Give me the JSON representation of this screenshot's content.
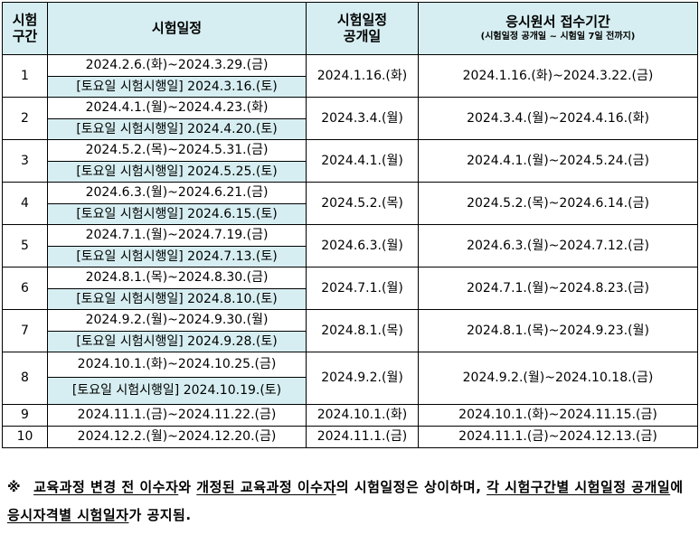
{
  "header": {
    "col1": "시험구간",
    "col1_line1": "시험",
    "col1_line2": "구간",
    "col2": "시험일정",
    "col3_line1": "시험일정",
    "col3_line2": "공개일",
    "col4_main": "응시원서 접수기간",
    "col4_sub": "(시험일정 공개일 ~ 시험일 7일 전까지)"
  },
  "rows": [
    {
      "no": "1",
      "period": "2024.2.6.(화)~2024.3.29.(금)",
      "sat": "[토요일 시험시행일] 2024.3.16.(토)",
      "open": "2024.1.16.(화)",
      "apply": "2024.1.16.(화)~2024.3.22.(금)"
    },
    {
      "no": "2",
      "period": "2024.4.1.(월)~2024.4.23.(화)",
      "sat": "[토요일 시험시행일] 2024.4.20.(토)",
      "open": "2024.3.4.(월)",
      "apply": "2024.3.4.(월)~2024.4.16.(화)"
    },
    {
      "no": "3",
      "period": "2024.5.2.(목)~2024.5.31.(금)",
      "sat": "[토요일 시험시행일] 2024.5.25.(토)",
      "open": "2024.4.1.(월)",
      "apply": "2024.4.1.(월)~2024.5.24.(금)"
    },
    {
      "no": "4",
      "period": "2024.6.3.(월)~2024.6.21.(금)",
      "sat": "[토요일 시험시행일] 2024.6.15.(토)",
      "open": "2024.5.2.(목)",
      "apply": "2024.5.2.(목)~2024.6.14.(금)"
    },
    {
      "no": "5",
      "period": "2024.7.1.(월)~2024.7.19.(금)",
      "sat": "[토요일 시험시행일] 2024.7.13.(토)",
      "open": "2024.6.3.(월)",
      "apply": "2024.6.3.(월)~2024.7.12.(금)"
    },
    {
      "no": "6",
      "period": "2024.8.1.(목)~2024.8.30.(금)",
      "sat": "[토요일 시험시행일] 2024.8.10.(토)",
      "open": "2024.7.1.(월)",
      "apply": "2024.7.1.(월)~2024.8.23.(금)"
    },
    {
      "no": "7",
      "period": "2024.9.2.(월)~2024.9.30.(월)",
      "sat": "[토요일 시험시행일] 2024.9.28.(토)",
      "open": "2024.8.1.(목)",
      "apply": "2024.8.1.(목)~2024.9.23.(월)"
    },
    {
      "no": "8",
      "period": "2024.10.1.(화)~2024.10.25.(금)",
      "sat": "[토요일 시험시행일] 2024.10.19.(토)",
      "open": "2024.9.2.(월)",
      "apply": "2024.9.2.(월)~2024.10.18.(금)"
    },
    {
      "no": "9",
      "period": "2024.11.1.(금)~2024.11.22.(금)",
      "open": "2024.10.1.(화)",
      "apply": "2024.10.1.(화)~2024.11.15.(금)"
    },
    {
      "no": "10",
      "period": "2024.12.2.(월)~2024.12.20.(금)",
      "open": "2024.11.1.(금)",
      "apply": "2024.11.1.(금)~2024.12.13.(금)"
    }
  ],
  "note": {
    "mark": "※",
    "part1": "교육과정 변경 전 이수자",
    "part2": "와 ",
    "part3": "개정된 교육과정 이수자",
    "part4": "의 시험일정은 상이하며, ",
    "part5": "각 시험구간별 시험일정 공개일",
    "part6": "에 ",
    "part7": "응시자격별 시험일자",
    "part8": "가 공지됨."
  },
  "colors": {
    "header_bg": "#d6eef1",
    "saturday_bg": "#d6eef1",
    "border": "#000000"
  }
}
